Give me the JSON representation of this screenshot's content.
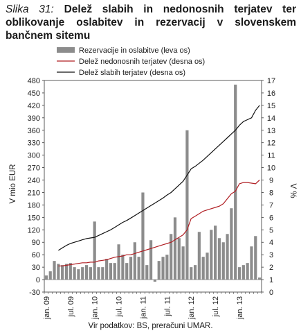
{
  "figure": {
    "label": "Slika 31:",
    "title": "Delež slabih in nedonosnih terjatev ter oblikovanje oslabitev in rezervacij v slovenskem bančnem sitemu",
    "source": "Vir podatkov: BS, preračuni UMAR."
  },
  "colors": {
    "bars": "#8c8c8c",
    "nonperforming_line": "#b01e23",
    "bad_claims_line": "#111111"
  },
  "chart_data": {
    "type": "bar+line",
    "xlabel": "",
    "ylabel_left": "V mio EUR",
    "ylabel_right": "V %",
    "ylim_left": [
      -30,
      480
    ],
    "yticks_left": [
      "480",
      "450",
      "420",
      "390",
      "360",
      "330",
      "300",
      "270",
      "240",
      "210",
      "180",
      "150",
      "120",
      "90",
      "60",
      "30",
      "0",
      "-30"
    ],
    "ylim_right": [
      0,
      17
    ],
    "yticks_right": [
      "17",
      "16",
      "15",
      "14",
      "13",
      "12",
      "11",
      "10",
      "9",
      "8",
      "7",
      "6",
      "5",
      "4",
      "3",
      "2",
      "1",
      "0"
    ],
    "x_tick_labels": [
      "jan. 09",
      "jul. 09",
      "jan. 10",
      "jul. 10",
      "jan. 11",
      "jul. 11",
      "jan. 12",
      "jul. 12",
      "jan. 13"
    ],
    "x_tick_index": [
      0,
      6,
      12,
      18,
      24,
      30,
      36,
      42,
      48
    ],
    "months": [
      "2009-01",
      "2009-02",
      "2009-03",
      "2009-04",
      "2009-05",
      "2009-06",
      "2009-07",
      "2009-08",
      "2009-09",
      "2009-10",
      "2009-11",
      "2009-12",
      "2010-01",
      "2010-02",
      "2010-03",
      "2010-04",
      "2010-05",
      "2010-06",
      "2010-07",
      "2010-08",
      "2010-09",
      "2010-10",
      "2010-11",
      "2010-12",
      "2011-01",
      "2011-02",
      "2011-03",
      "2011-04",
      "2011-05",
      "2011-06",
      "2011-07",
      "2011-08",
      "2011-09",
      "2011-10",
      "2011-11",
      "2011-12",
      "2012-01",
      "2012-02",
      "2012-03",
      "2012-04",
      "2012-05",
      "2012-06",
      "2012-07",
      "2012-08",
      "2012-09",
      "2012-10",
      "2012-11",
      "2012-12",
      "2013-01",
      "2013-02",
      "2013-03",
      "2013-04",
      "2013-05",
      "2013-06"
    ],
    "legend": [
      {
        "key": "bars",
        "label": "Rezervacije in oslabitve (leva os)"
      },
      {
        "key": "nonperforming",
        "label": "Delež nedonosnih terjatev (desna os)"
      },
      {
        "key": "bad",
        "label": "Delež slabih terjatev (desna os)"
      }
    ],
    "series": [
      {
        "name": "Rezervacije in oslabitve (leva os)",
        "axis": "left",
        "kind": "bar",
        "values": [
          10,
          20,
          45,
          38,
          35,
          38,
          40,
          30,
          25,
          30,
          35,
          30,
          140,
          30,
          30,
          50,
          40,
          40,
          85,
          60,
          40,
          55,
          90,
          55,
          210,
          35,
          95,
          -5,
          45,
          55,
          60,
          110,
          150,
          100,
          80,
          360,
          30,
          35,
          115,
          55,
          65,
          120,
          130,
          100,
          90,
          110,
          172,
          470,
          30,
          35,
          40,
          80,
          105,
          5
        ]
      },
      {
        "name": "Delež nedonosnih terjatev (desna os)",
        "axis": "right",
        "kind": "line",
        "values": [
          null,
          null,
          null,
          2.1,
          2.1,
          2.15,
          2.2,
          2.25,
          2.3,
          2.35,
          2.35,
          2.4,
          2.4,
          2.5,
          2.55,
          2.6,
          2.7,
          2.8,
          2.85,
          2.9,
          3.0,
          3.0,
          3.1,
          3.2,
          3.3,
          3.4,
          3.5,
          3.6,
          3.7,
          3.8,
          3.9,
          4.0,
          4.2,
          4.4,
          4.6,
          5.0,
          5.9,
          6.1,
          6.3,
          6.5,
          6.6,
          6.7,
          6.8,
          6.9,
          7.1,
          7.5,
          7.9,
          8.1,
          8.7,
          8.8,
          8.8,
          8.75,
          8.7,
          9.0
        ]
      },
      {
        "name": "Delež slabih terjatev (desna os)",
        "axis": "right",
        "kind": "line",
        "values": [
          null,
          null,
          null,
          3.35,
          3.55,
          3.75,
          3.9,
          4.0,
          4.1,
          4.2,
          4.3,
          4.35,
          4.4,
          4.55,
          4.7,
          4.85,
          5.0,
          5.2,
          5.4,
          5.6,
          5.75,
          5.95,
          6.15,
          6.35,
          6.55,
          6.75,
          6.95,
          7.15,
          7.35,
          7.55,
          7.8,
          8.0,
          8.3,
          8.6,
          8.9,
          9.4,
          9.9,
          10.1,
          10.35,
          10.6,
          10.9,
          11.2,
          11.5,
          11.8,
          12.1,
          12.4,
          12.7,
          13.0,
          13.4,
          13.7,
          13.85,
          14.0,
          14.6,
          15.0
        ]
      }
    ]
  }
}
